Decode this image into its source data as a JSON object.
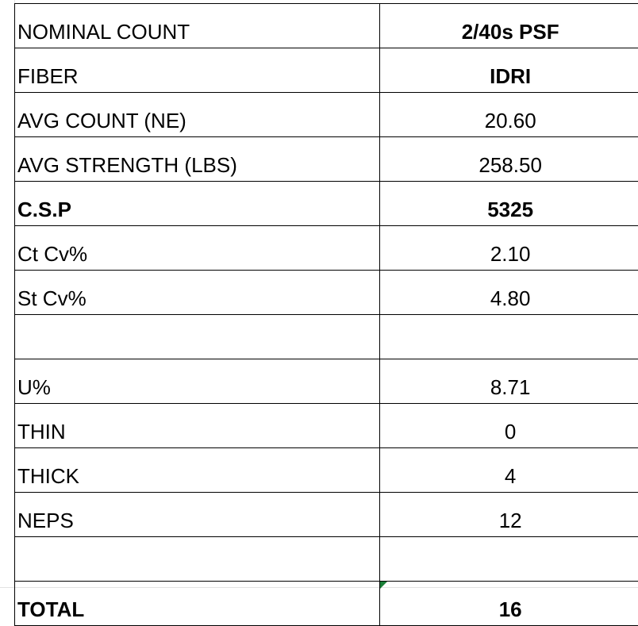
{
  "rows": [
    {
      "label": "NOMINAL COUNT",
      "value": "2/40s PSF",
      "label_bold": false,
      "value_bold": true
    },
    {
      "label": "FIBER",
      "value": "IDRI",
      "label_bold": false,
      "value_bold": true
    },
    {
      "label": "AVG COUNT (NE)",
      "value": "20.60",
      "label_bold": false,
      "value_bold": false
    },
    {
      "label": "AVG STRENGTH (LBS)",
      "value": "258.50",
      "label_bold": false,
      "value_bold": false
    },
    {
      "label": "C.S.P",
      "value": "5325",
      "label_bold": true,
      "value_bold": true
    },
    {
      "label": "Ct Cv%",
      "value": "2.10",
      "label_bold": false,
      "value_bold": false
    },
    {
      "label": "St Cv%",
      "value": "4.80",
      "label_bold": false,
      "value_bold": false
    },
    {
      "label": "",
      "value": "",
      "label_bold": false,
      "value_bold": false
    },
    {
      "label": "U%",
      "value": "8.71",
      "label_bold": false,
      "value_bold": false
    },
    {
      "label": "THIN",
      "value": "0",
      "label_bold": false,
      "value_bold": false
    },
    {
      "label": "THICK",
      "value": "4",
      "label_bold": false,
      "value_bold": false
    },
    {
      "label": "NEPS",
      "value": "12",
      "label_bold": false,
      "value_bold": false
    },
    {
      "label": "",
      "value": "",
      "label_bold": false,
      "value_bold": false
    },
    {
      "label": "TOTAL",
      "value": "16",
      "label_bold": true,
      "value_bold": true
    }
  ],
  "colors": {
    "border": "#000000",
    "gridline": "#e2e2e2",
    "error_flag": "#1a7f37"
  }
}
